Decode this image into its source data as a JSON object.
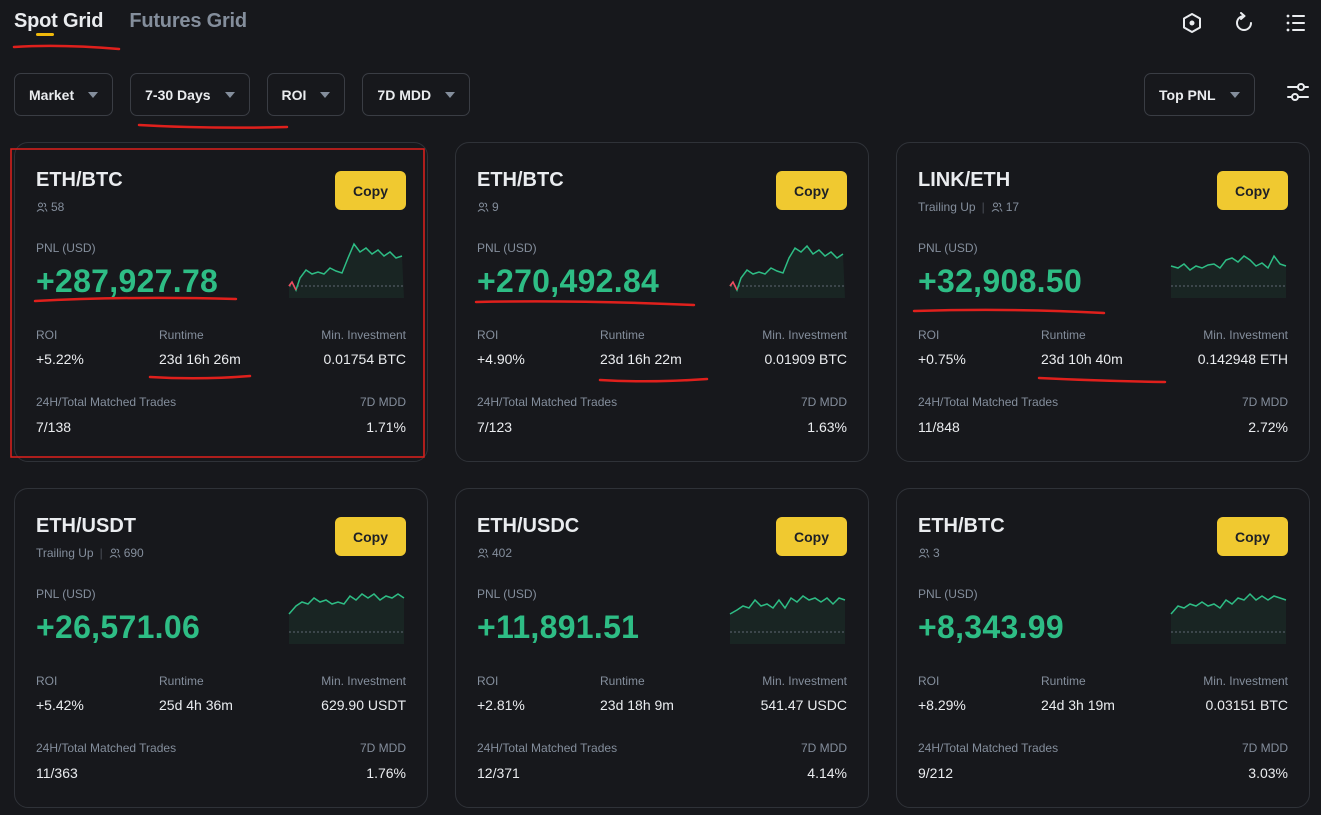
{
  "tabs": [
    {
      "label": "Spot Grid",
      "active": true
    },
    {
      "label": "Futures Grid",
      "active": false
    }
  ],
  "header_icons": [
    "hexagon-icon",
    "refresh-icon",
    "list-icon"
  ],
  "filters": [
    {
      "label": "Market"
    },
    {
      "label": "7-30 Days"
    },
    {
      "label": "ROI"
    },
    {
      "label": "7D MDD"
    }
  ],
  "sort": {
    "label": "Top PNL"
  },
  "labels": {
    "copy": "Copy",
    "pnl": "PNL (USD)",
    "roi": "ROI",
    "runtime": "Runtime",
    "min_investment": "Min. Investment",
    "matched_trades": "24H/Total Matched Trades",
    "mdd": "7D MDD",
    "trailing": "Trailing Up"
  },
  "colors": {
    "accent": "#f0c930",
    "positive": "#2ebd85",
    "negative": "#f6465d",
    "annotation": "#e0201c"
  },
  "cards": [
    {
      "pair": "ETH/BTC",
      "trailing": false,
      "copiers": "58",
      "pnl": "+287,927.78",
      "roi": "+5.22%",
      "runtime": "23d 16h 26m",
      "min_investment": "0.01754 BTC",
      "matched_trades": "7/138",
      "mdd": "1.71%"
    },
    {
      "pair": "ETH/BTC",
      "trailing": false,
      "copiers": "9",
      "pnl": "+270,492.84",
      "roi": "+4.90%",
      "runtime": "23d 16h 22m",
      "min_investment": "0.01909 BTC",
      "matched_trades": "7/123",
      "mdd": "1.63%"
    },
    {
      "pair": "LINK/ETH",
      "trailing": true,
      "copiers": "17",
      "pnl": "+32,908.50",
      "roi": "+0.75%",
      "runtime": "23d 10h 40m",
      "min_investment": "0.142948 ETH",
      "matched_trades": "11/848",
      "mdd": "2.72%"
    },
    {
      "pair": "ETH/USDT",
      "trailing": true,
      "copiers": "690",
      "pnl": "+26,571.06",
      "roi": "+5.42%",
      "runtime": "25d 4h 36m",
      "min_investment": "629.90 USDT",
      "matched_trades": "11/363",
      "mdd": "1.76%"
    },
    {
      "pair": "ETH/USDC",
      "trailing": false,
      "copiers": "402",
      "pnl": "+11,891.51",
      "roi": "+2.81%",
      "runtime": "23d 18h 9m",
      "min_investment": "541.47 USDC",
      "matched_trades": "12/371",
      "mdd": "4.14%"
    },
    {
      "pair": "ETH/BTC",
      "trailing": false,
      "copiers": "3",
      "pnl": "+8,343.99",
      "roi": "+8.29%",
      "runtime": "24d 3h 19m",
      "min_investment": "0.03151 BTC",
      "matched_trades": "9/212",
      "mdd": "3.03%"
    }
  ]
}
